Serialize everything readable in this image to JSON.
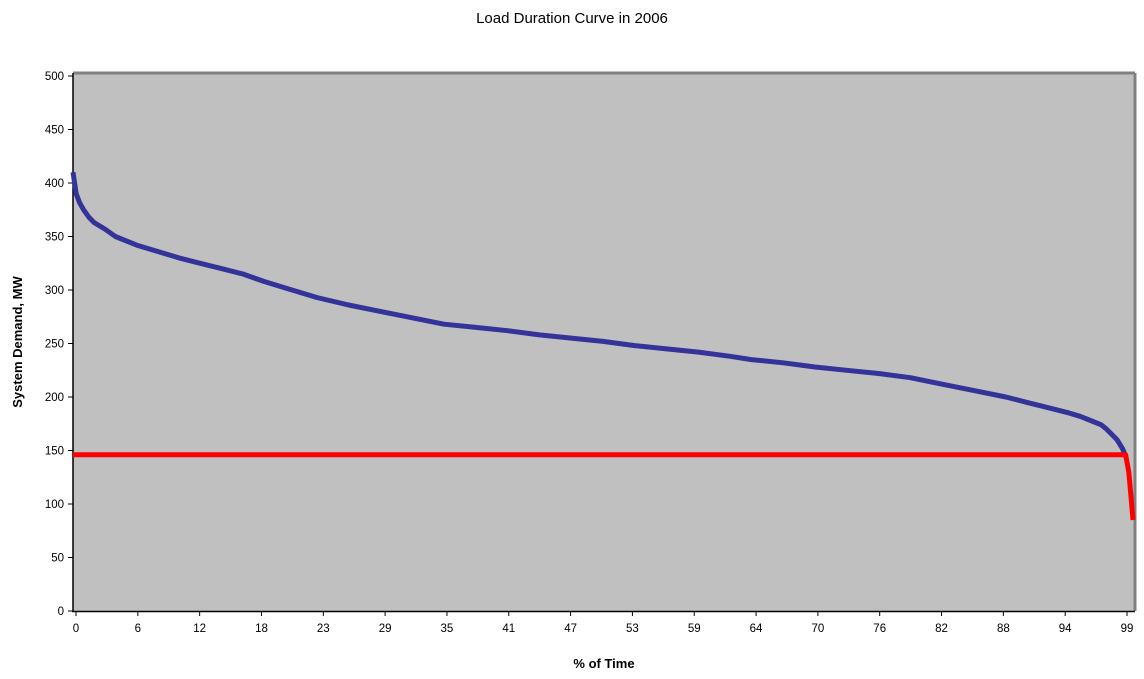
{
  "chart_data": {
    "type": "line",
    "title": "Load Duration Curve in 2006",
    "xlabel": "% of Time",
    "ylabel": "System Demand, MW",
    "ylim": [
      0,
      500
    ],
    "yticks": [
      0,
      50,
      100,
      150,
      200,
      250,
      300,
      350,
      400,
      450,
      500
    ],
    "xticks": [
      "0",
      "6",
      "12",
      "18",
      "23",
      "29",
      "35",
      "41",
      "47",
      "53",
      "59",
      "64",
      "70",
      "76",
      "82",
      "88",
      "94",
      "99"
    ],
    "xlim": [
      0,
      100
    ],
    "grid": false,
    "legend": "none",
    "plot_background": "#c0c0c0",
    "series": [
      {
        "color": "#333399",
        "x": [
          0,
          0.3,
          0.6,
          1,
          1.5,
          2,
          3,
          4,
          5,
          6,
          8,
          10,
          12,
          14,
          16,
          18,
          20,
          23,
          26,
          29,
          32,
          35,
          38,
          41,
          44,
          47,
          50,
          53,
          56,
          59,
          62,
          64,
          67,
          70,
          73,
          76,
          79,
          82,
          85,
          88,
          90,
          92,
          94,
          95,
          96,
          97,
          97.5,
          98,
          98.5,
          99,
          99.3
        ],
        "values": [
          410,
          390,
          382,
          375,
          368,
          363,
          357,
          350,
          346,
          342,
          336,
          330,
          325,
          320,
          315,
          308,
          302,
          293,
          286,
          280,
          274,
          268,
          265,
          262,
          258,
          255,
          252,
          248,
          245,
          242,
          238,
          235,
          232,
          228,
          225,
          222,
          218,
          212,
          206,
          200,
          195,
          190,
          185,
          182,
          178,
          174,
          170,
          165,
          160,
          152,
          145
        ]
      },
      {
        "color": "#ff0000",
        "x": [
          0,
          99.3,
          99.6,
          99.8,
          100
        ],
        "values": [
          146,
          146,
          130,
          108,
          85
        ]
      }
    ]
  }
}
